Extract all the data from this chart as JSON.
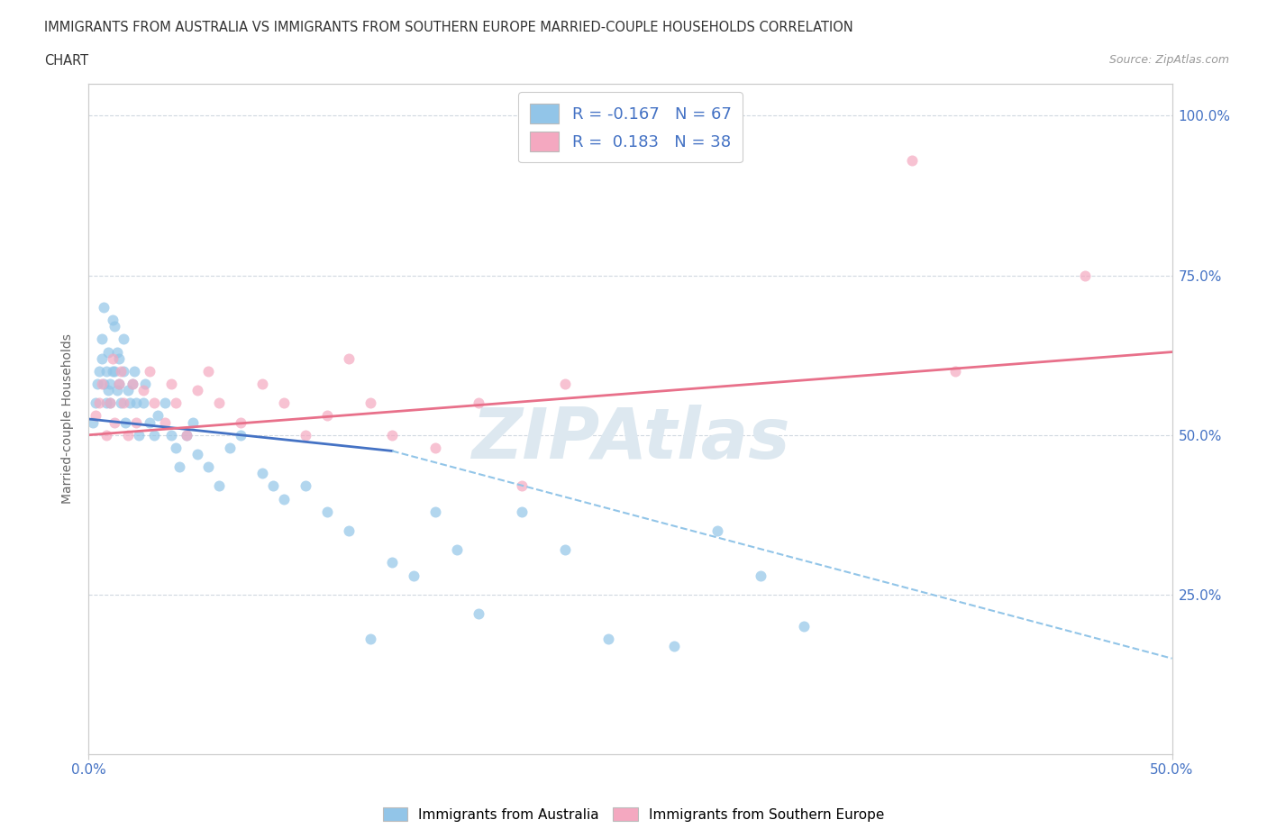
{
  "title_line1": "IMMIGRANTS FROM AUSTRALIA VS IMMIGRANTS FROM SOUTHERN EUROPE MARRIED-COUPLE HOUSEHOLDS CORRELATION",
  "title_line2": "CHART",
  "source": "Source: ZipAtlas.com",
  "ylabel": "Married-couple Households",
  "xlim": [
    0.0,
    0.5
  ],
  "ylim": [
    0.0,
    1.05
  ],
  "ytick_labels": [
    "25.0%",
    "50.0%",
    "75.0%",
    "100.0%"
  ],
  "ytick_positions": [
    0.25,
    0.5,
    0.75,
    1.0
  ],
  "r_australia": -0.167,
  "n_australia": 67,
  "r_southern_europe": 0.183,
  "n_southern_europe": 38,
  "color_australia": "#92c5e8",
  "color_southern_europe": "#f4a8c0",
  "trendline_australia_solid_color": "#4472c4",
  "trendline_australia_dashed_color": "#92c5e8",
  "trendline_southern_europe_color": "#e8708a",
  "watermark_color": "#dde8f0",
  "grid_color": "#d0d8e0",
  "axis_color": "#cccccc",
  "text_color": "#4472c4",
  "title_color": "#333333",
  "source_color": "#999999",
  "background_color": "#ffffff",
  "legend_label_australia": "Immigrants from Australia",
  "legend_label_southern_europe": "Immigrants from Southern Europe",
  "aus_x": [
    0.002,
    0.003,
    0.004,
    0.005,
    0.006,
    0.006,
    0.007,
    0.007,
    0.008,
    0.008,
    0.009,
    0.009,
    0.01,
    0.01,
    0.011,
    0.011,
    0.012,
    0.012,
    0.013,
    0.013,
    0.014,
    0.014,
    0.015,
    0.016,
    0.016,
    0.017,
    0.018,
    0.019,
    0.02,
    0.021,
    0.022,
    0.023,
    0.025,
    0.026,
    0.028,
    0.03,
    0.032,
    0.035,
    0.038,
    0.04,
    0.042,
    0.045,
    0.048,
    0.05,
    0.055,
    0.06,
    0.065,
    0.07,
    0.08,
    0.085,
    0.09,
    0.1,
    0.11,
    0.12,
    0.13,
    0.14,
    0.15,
    0.16,
    0.17,
    0.18,
    0.2,
    0.22,
    0.24,
    0.27,
    0.29,
    0.31,
    0.33
  ],
  "aus_y": [
    0.52,
    0.55,
    0.58,
    0.6,
    0.65,
    0.62,
    0.58,
    0.7,
    0.55,
    0.6,
    0.57,
    0.63,
    0.55,
    0.58,
    0.68,
    0.6,
    0.67,
    0.6,
    0.57,
    0.63,
    0.62,
    0.58,
    0.55,
    0.6,
    0.65,
    0.52,
    0.57,
    0.55,
    0.58,
    0.6,
    0.55,
    0.5,
    0.55,
    0.58,
    0.52,
    0.5,
    0.53,
    0.55,
    0.5,
    0.48,
    0.45,
    0.5,
    0.52,
    0.47,
    0.45,
    0.42,
    0.48,
    0.5,
    0.44,
    0.42,
    0.4,
    0.42,
    0.38,
    0.35,
    0.18,
    0.3,
    0.28,
    0.38,
    0.32,
    0.22,
    0.38,
    0.32,
    0.18,
    0.17,
    0.35,
    0.28,
    0.2
  ],
  "se_x": [
    0.003,
    0.005,
    0.006,
    0.008,
    0.01,
    0.011,
    0.012,
    0.014,
    0.015,
    0.016,
    0.018,
    0.02,
    0.022,
    0.025,
    0.028,
    0.03,
    0.035,
    0.038,
    0.04,
    0.045,
    0.05,
    0.055,
    0.06,
    0.07,
    0.08,
    0.09,
    0.1,
    0.11,
    0.12,
    0.13,
    0.14,
    0.16,
    0.18,
    0.2,
    0.22,
    0.38,
    0.4,
    0.46
  ],
  "se_y": [
    0.53,
    0.55,
    0.58,
    0.5,
    0.55,
    0.62,
    0.52,
    0.58,
    0.6,
    0.55,
    0.5,
    0.58,
    0.52,
    0.57,
    0.6,
    0.55,
    0.52,
    0.58,
    0.55,
    0.5,
    0.57,
    0.6,
    0.55,
    0.52,
    0.58,
    0.55,
    0.5,
    0.53,
    0.62,
    0.55,
    0.5,
    0.48,
    0.55,
    0.42,
    0.58,
    0.93,
    0.6,
    0.75
  ],
  "trendline_aus_x0": 0.0,
  "trendline_aus_y0": 0.525,
  "trendline_aus_x1": 0.14,
  "trendline_aus_y1": 0.475,
  "trendline_aus_dashed_x0": 0.14,
  "trendline_aus_dashed_y0": 0.475,
  "trendline_aus_dashed_x1": 0.5,
  "trendline_aus_dashed_y1": 0.15,
  "trendline_se_x0": 0.0,
  "trendline_se_y0": 0.5,
  "trendline_se_x1": 0.5,
  "trendline_se_y1": 0.63
}
